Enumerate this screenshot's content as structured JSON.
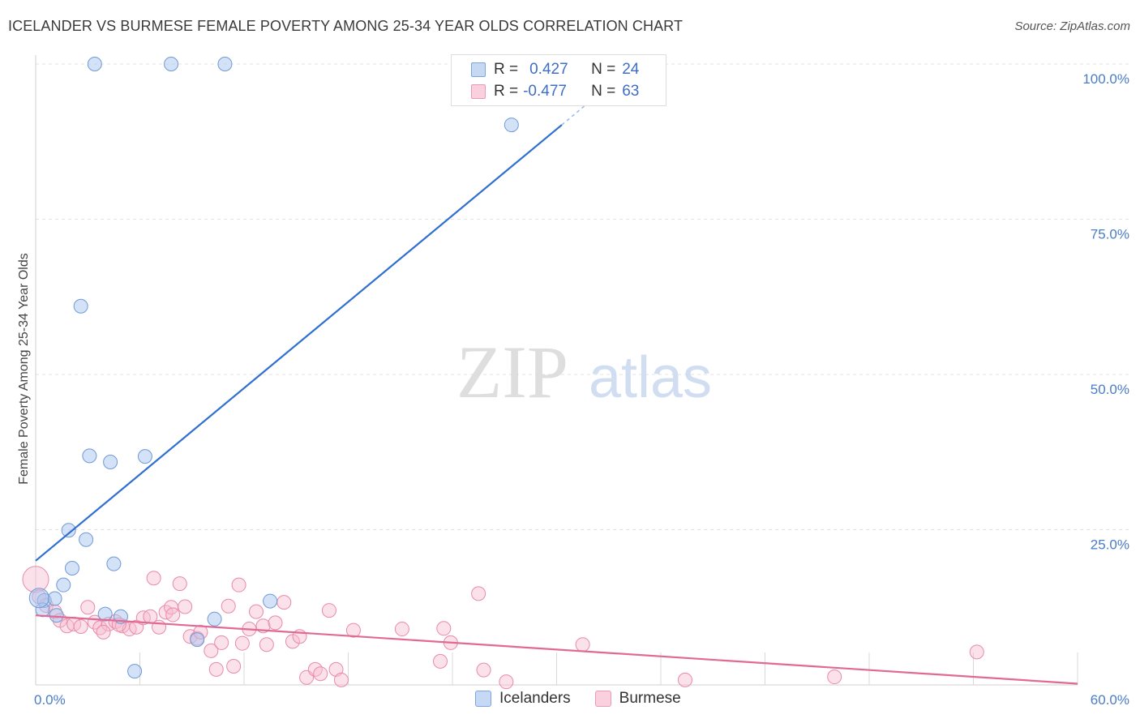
{
  "title": "ICELANDER VS BURMESE FEMALE POVERTY AMONG 25-34 YEAR OLDS CORRELATION CHART",
  "source": "Source: ZipAtlas.com",
  "watermark": {
    "zip": "ZIP",
    "atlas": "atlas"
  },
  "legend": {
    "rows": [
      {
        "r_label": "R =",
        "r_value": "0.427",
        "n_label": "N =",
        "n_value": "24",
        "color": "#a9c6f0",
        "border": "#6f9ad6"
      },
      {
        "r_label": "R =",
        "r_value": "-0.477",
        "n_label": "N =",
        "n_value": "63",
        "color": "#f7bdd0",
        "border": "#e98aa9"
      }
    ]
  },
  "bottom_legend": [
    {
      "label": "Icelanders",
      "color": "#c5d9f5",
      "border": "#7ea4dc"
    },
    {
      "label": "Burmese",
      "color": "#fad0de",
      "border": "#e99ab5"
    }
  ],
  "chart_data": {
    "type": "scatter",
    "title": "ICELANDER VS BURMESE FEMALE POVERTY AMONG 25-34 YEAR OLDS CORRELATION CHART",
    "xlabel": "",
    "ylabel": "Female Poverty Among 25-34 Year Olds",
    "xlim": [
      0,
      60
    ],
    "ylim": [
      0,
      100
    ],
    "x_tick_labels": [
      "0.0%",
      "60.0%"
    ],
    "y_ticks": [
      25,
      50,
      75,
      100
    ],
    "y_tick_labels": [
      "25.0%",
      "50.0%",
      "75.0%",
      "100.0%"
    ],
    "grid": true,
    "series": [
      {
        "name": "Icelanders",
        "color": "#a9c6f0",
        "stroke": "#6f9ad6",
        "trend_color": "#2f6fd0",
        "trend": {
          "x": [
            0,
            30.3
          ],
          "y": [
            20.0,
            90.2
          ],
          "dashed_to": [
            33.3,
            97.2
          ]
        },
        "points": [
          [
            3.4,
            100
          ],
          [
            7.8,
            100
          ],
          [
            10.9,
            100
          ],
          [
            27.4,
            90.2
          ],
          [
            2.6,
            61.0
          ],
          [
            3.1,
            36.9
          ],
          [
            4.3,
            35.9
          ],
          [
            6.3,
            36.8
          ],
          [
            1.9,
            24.9
          ],
          [
            2.9,
            23.4
          ],
          [
            4.5,
            19.5
          ],
          [
            2.1,
            18.8
          ],
          [
            1.6,
            16.1
          ],
          [
            0.5,
            13.6
          ],
          [
            1.1,
            13.9
          ],
          [
            0.4,
            12.1
          ],
          [
            1.2,
            11.2
          ],
          [
            4.0,
            11.4
          ],
          [
            4.9,
            11.0
          ],
          [
            9.3,
            7.3
          ],
          [
            10.3,
            10.6
          ],
          [
            13.5,
            13.5
          ],
          [
            5.7,
            2.2
          ],
          [
            0.2,
            14.0
          ]
        ]
      },
      {
        "name": "Burmese",
        "color": "#f7bdd0",
        "stroke": "#e98aa9",
        "trend_color": "#e06a95",
        "trend": {
          "x": [
            0,
            60
          ],
          "y": [
            11.2,
            0.2
          ]
        },
        "points": [
          [
            0.0,
            17.0
          ],
          [
            0.2,
            14.2
          ],
          [
            0.6,
            12.8
          ],
          [
            1.1,
            11.8
          ],
          [
            1.4,
            10.4
          ],
          [
            1.8,
            9.5
          ],
          [
            2.2,
            9.8
          ],
          [
            2.6,
            9.4
          ],
          [
            3.0,
            12.5
          ],
          [
            3.4,
            10.1
          ],
          [
            3.7,
            9.2
          ],
          [
            4.2,
            9.8
          ],
          [
            4.6,
            10.2
          ],
          [
            5.0,
            9.5
          ],
          [
            5.4,
            9.0
          ],
          [
            5.8,
            9.3
          ],
          [
            6.2,
            10.8
          ],
          [
            6.6,
            11.0
          ],
          [
            6.8,
            17.2
          ],
          [
            7.1,
            9.3
          ],
          [
            7.5,
            11.7
          ],
          [
            7.8,
            12.5
          ],
          [
            7.9,
            11.3
          ],
          [
            8.3,
            16.3
          ],
          [
            8.6,
            12.6
          ],
          [
            8.9,
            7.8
          ],
          [
            9.3,
            7.5
          ],
          [
            9.5,
            8.5
          ],
          [
            10.1,
            5.5
          ],
          [
            10.4,
            2.5
          ],
          [
            10.7,
            6.8
          ],
          [
            11.1,
            12.7
          ],
          [
            11.4,
            3.0
          ],
          [
            11.7,
            16.1
          ],
          [
            11.9,
            6.7
          ],
          [
            12.3,
            9.0
          ],
          [
            12.7,
            11.8
          ],
          [
            13.1,
            9.5
          ],
          [
            13.3,
            6.5
          ],
          [
            13.8,
            10.0
          ],
          [
            14.3,
            13.3
          ],
          [
            14.8,
            7.0
          ],
          [
            15.2,
            7.8
          ],
          [
            15.6,
            1.2
          ],
          [
            16.1,
            2.5
          ],
          [
            16.4,
            1.8
          ],
          [
            16.9,
            12.0
          ],
          [
            17.3,
            2.5
          ],
          [
            17.6,
            0.8
          ],
          [
            18.3,
            8.8
          ],
          [
            21.1,
            9.0
          ],
          [
            23.3,
            3.8
          ],
          [
            23.5,
            9.1
          ],
          [
            23.9,
            6.8
          ],
          [
            25.5,
            14.7
          ],
          [
            25.8,
            2.4
          ],
          [
            27.1,
            0.5
          ],
          [
            31.5,
            6.5
          ],
          [
            37.4,
            0.8
          ],
          [
            46.0,
            1.3
          ],
          [
            54.2,
            5.3
          ],
          [
            4.8,
            9.7
          ],
          [
            3.9,
            8.5
          ]
        ]
      }
    ]
  }
}
